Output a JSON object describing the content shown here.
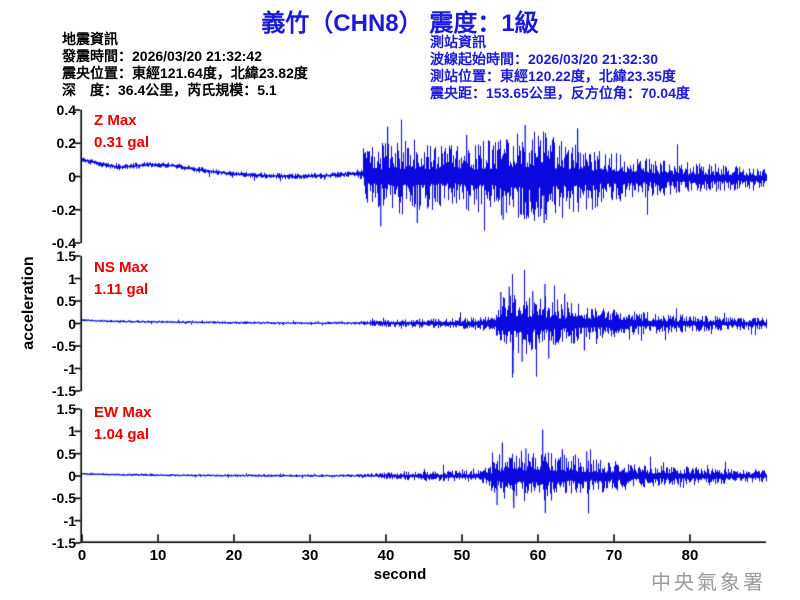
{
  "title": "義竹（CHN8） 震度：1級",
  "quake_info": {
    "heading": "地震資訊",
    "lines": [
      "發震時間：2026/03/20 21:32:42",
      "震央位置：東經121.64度，北緯23.82度",
      "深　度：36.4公里，芮氏規模：5.1"
    ]
  },
  "station_info": {
    "heading": "測站資訊",
    "lines": [
      "波線起始時間：2026/03/20 21:32:30",
      "測站位置：東經120.22度，北緯23.35度",
      "震央距：153.65公里，反方位角：70.04度"
    ]
  },
  "footer": {
    "agency": "中央氣象署"
  },
  "colors": {
    "trace": "#0a0ae0",
    "blue_text": "#1c1cd8",
    "red_text": "#e80000",
    "axis": "#000000",
    "agency_gray": "#9b9b9b"
  },
  "chart_data": {
    "type": "line",
    "title": "義竹（CHN8） 震度：1級",
    "xlabel": "second",
    "ylabel": "acceleration",
    "x_range": [
      0,
      90
    ],
    "xticks": [
      0,
      10,
      20,
      30,
      40,
      50,
      60,
      70,
      80
    ],
    "grid": false,
    "legend": "none",
    "panels": [
      {
        "id": "Z",
        "label": "Z Max",
        "max_label": "0.31 gal",
        "max_gal": 0.31,
        "ylim": [
          -0.4,
          0.4
        ],
        "yticks": [
          "0.4",
          "0.2",
          "0",
          "-0.2",
          "-0.4"
        ],
        "p_arrival_s": 37,
        "envelope": [
          [
            0,
            0.013
          ],
          [
            36,
            0.013
          ],
          [
            36.8,
            0.03
          ],
          [
            37.2,
            0.11
          ],
          [
            38,
            0.135
          ],
          [
            40,
            0.15
          ],
          [
            43,
            0.16
          ],
          [
            46,
            0.14
          ],
          [
            49,
            0.13
          ],
          [
            52,
            0.15
          ],
          [
            55,
            0.17
          ],
          [
            57,
            0.19
          ],
          [
            59,
            0.2
          ],
          [
            61,
            0.19
          ],
          [
            63,
            0.17
          ],
          [
            65,
            0.155
          ],
          [
            68,
            0.125
          ],
          [
            71,
            0.1
          ],
          [
            74,
            0.085
          ],
          [
            78,
            0.07
          ],
          [
            82,
            0.06
          ],
          [
            86,
            0.052
          ],
          [
            90,
            0.045
          ]
        ],
        "baseline": [
          [
            0,
            0.1
          ],
          [
            3,
            0.07
          ],
          [
            5,
            0.055
          ],
          [
            7,
            0.065
          ],
          [
            9,
            0.072
          ],
          [
            12,
            0.065
          ],
          [
            14,
            0.05
          ],
          [
            17,
            0.03
          ],
          [
            20,
            0.015
          ],
          [
            24,
            0.005
          ],
          [
            28,
            0
          ],
          [
            32,
            0.005
          ],
          [
            35,
            0.015
          ],
          [
            36.8,
            0.02
          ],
          [
            37.5,
            0
          ],
          [
            90,
            -0.01
          ]
        ],
        "peaks": [
          [
            58.3,
            0.31
          ],
          [
            40.2,
            0.3
          ],
          [
            39.3,
            -0.3
          ],
          [
            44.1,
            -0.28
          ],
          [
            50.6,
            0.25
          ],
          [
            60.8,
            -0.28
          ],
          [
            65.2,
            0.29
          ],
          [
            55.4,
            -0.26
          ]
        ]
      },
      {
        "id": "NS",
        "label": "NS Max",
        "max_label": "1.11 gal",
        "max_gal": 1.11,
        "ylim": [
          -1.5,
          1.5
        ],
        "yticks": [
          "1.5",
          "1",
          "0.5",
          "0",
          "-0.5",
          "-1",
          "-1.5"
        ],
        "s_arrival_s": 55,
        "envelope": [
          [
            0,
            0.02
          ],
          [
            36,
            0.022
          ],
          [
            37,
            0.045
          ],
          [
            40,
            0.06
          ],
          [
            44,
            0.075
          ],
          [
            48,
            0.09
          ],
          [
            52,
            0.1
          ],
          [
            54,
            0.13
          ],
          [
            54.8,
            0.35
          ],
          [
            55.5,
            0.5
          ],
          [
            56.5,
            0.55
          ],
          [
            57.5,
            0.5
          ],
          [
            59,
            0.46
          ],
          [
            61,
            0.42
          ],
          [
            63,
            0.36
          ],
          [
            65,
            0.31
          ],
          [
            67,
            0.27
          ],
          [
            69,
            0.24
          ],
          [
            72,
            0.2
          ],
          [
            75,
            0.17
          ],
          [
            79,
            0.14
          ],
          [
            83,
            0.12
          ],
          [
            87,
            0.105
          ],
          [
            90,
            0.095
          ]
        ],
        "baseline": [
          [
            0,
            0.075
          ],
          [
            4,
            0.05
          ],
          [
            8,
            0.04
          ],
          [
            14,
            0.03
          ],
          [
            20,
            0.02
          ],
          [
            28,
            0.012
          ],
          [
            36,
            0.01
          ],
          [
            42,
            0.005
          ],
          [
            50,
            0
          ],
          [
            90,
            0
          ]
        ],
        "peaks": [
          [
            56.7,
            -1.11
          ],
          [
            56.2,
            0.82
          ],
          [
            57.9,
            -0.85
          ],
          [
            60.9,
            0.88
          ],
          [
            61.4,
            -0.78
          ],
          [
            55.1,
            0.7
          ],
          [
            63.5,
            0.66
          ],
          [
            66.1,
            -0.6
          ],
          [
            59.3,
            0.72
          ]
        ]
      },
      {
        "id": "EW",
        "label": "EW Max",
        "max_label": "1.04 gal",
        "max_gal": 1.04,
        "ylim": [
          -1.5,
          1.5
        ],
        "yticks": [
          "1.5",
          "1",
          "0.5",
          "0",
          "-0.5",
          "-1",
          "-1.5"
        ],
        "s_arrival_s": 55,
        "envelope": [
          [
            0,
            0.02
          ],
          [
            36,
            0.022
          ],
          [
            37,
            0.04
          ],
          [
            40,
            0.055
          ],
          [
            44,
            0.07
          ],
          [
            48,
            0.085
          ],
          [
            52,
            0.1
          ],
          [
            53.5,
            0.16
          ],
          [
            54.5,
            0.3
          ],
          [
            55.5,
            0.4
          ],
          [
            56.5,
            0.43
          ],
          [
            58,
            0.4
          ],
          [
            60,
            0.43
          ],
          [
            61.5,
            0.4
          ],
          [
            63,
            0.36
          ],
          [
            65,
            0.32
          ],
          [
            67,
            0.28
          ],
          [
            69,
            0.25
          ],
          [
            72,
            0.21
          ],
          [
            75,
            0.18
          ],
          [
            79,
            0.15
          ],
          [
            83,
            0.13
          ],
          [
            87,
            0.115
          ],
          [
            90,
            0.1
          ]
        ],
        "baseline": [
          [
            0,
            0.05
          ],
          [
            5,
            0.03
          ],
          [
            10,
            0.02
          ],
          [
            18,
            0.012
          ],
          [
            26,
            0.008
          ],
          [
            36,
            0.005
          ],
          [
            45,
            0
          ],
          [
            90,
            0
          ]
        ],
        "peaks": [
          [
            60.6,
            1.04
          ],
          [
            60.95,
            -0.83
          ],
          [
            55.3,
            0.75
          ],
          [
            56.8,
            -0.72
          ],
          [
            54.6,
            -0.65
          ],
          [
            63.2,
            0.6
          ],
          [
            58.4,
            0.62
          ],
          [
            66.4,
            0.55
          ]
        ]
      }
    ]
  }
}
